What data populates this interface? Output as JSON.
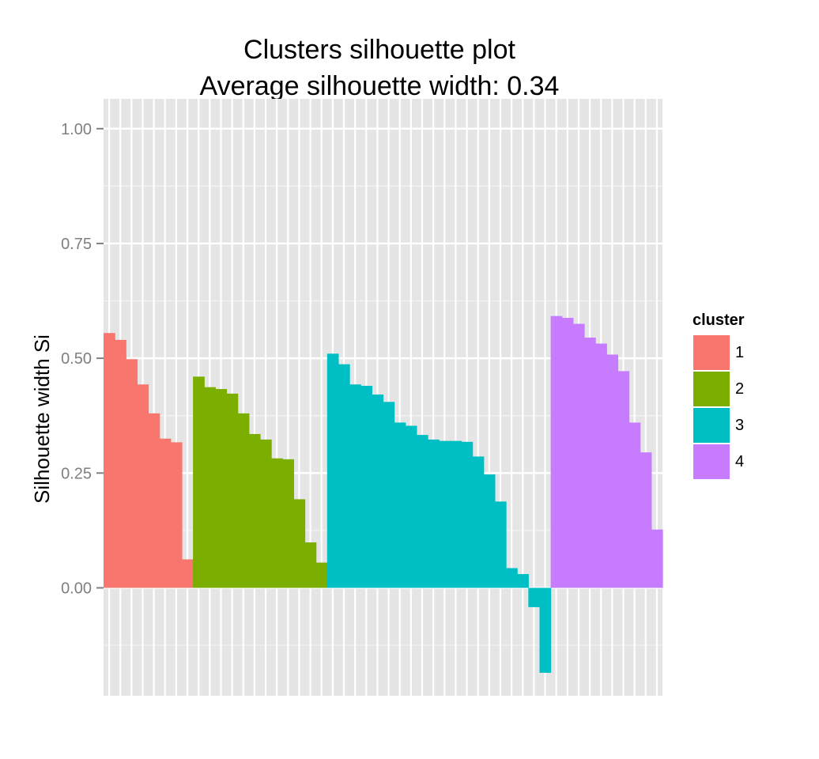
{
  "chart_data": {
    "type": "bar",
    "title": "Clusters silhouette plot",
    "subtitle": "Average silhouette width: 0.34",
    "xlabel": "",
    "ylabel": "Silhouette width Si",
    "ylim": [
      -0.235,
      1.065
    ],
    "yticks": [
      "0.00",
      "0.25",
      "0.50",
      "0.75",
      "1.00"
    ],
    "ytick_values": [
      0,
      0.25,
      0.5,
      0.75,
      1.0
    ],
    "grid": true,
    "legend": {
      "title": "cluster",
      "position": "right",
      "entries": [
        "1",
        "2",
        "3",
        "4"
      ]
    },
    "colors": {
      "1": "#f8766d",
      "2": "#7cae00",
      "3": "#00bfc4",
      "4": "#c77cff"
    },
    "series": [
      {
        "name": "1",
        "values": [
          0.555,
          0.54,
          0.498,
          0.443,
          0.38,
          0.325,
          0.317,
          0.062
        ]
      },
      {
        "name": "2",
        "values": [
          0.46,
          0.437,
          0.433,
          0.423,
          0.38,
          0.335,
          0.323,
          0.282,
          0.28,
          0.193,
          0.099,
          0.055
        ]
      },
      {
        "name": "3",
        "values": [
          0.51,
          0.487,
          0.443,
          0.44,
          0.421,
          0.405,
          0.36,
          0.353,
          0.333,
          0.323,
          0.32,
          0.32,
          0.318,
          0.286,
          0.247,
          0.188,
          0.043,
          0.03,
          -0.042,
          -0.185
        ]
      },
      {
        "name": "4",
        "values": [
          0.592,
          0.588,
          0.575,
          0.545,
          0.532,
          0.508,
          0.472,
          0.36,
          0.295,
          0.127
        ]
      }
    ]
  }
}
